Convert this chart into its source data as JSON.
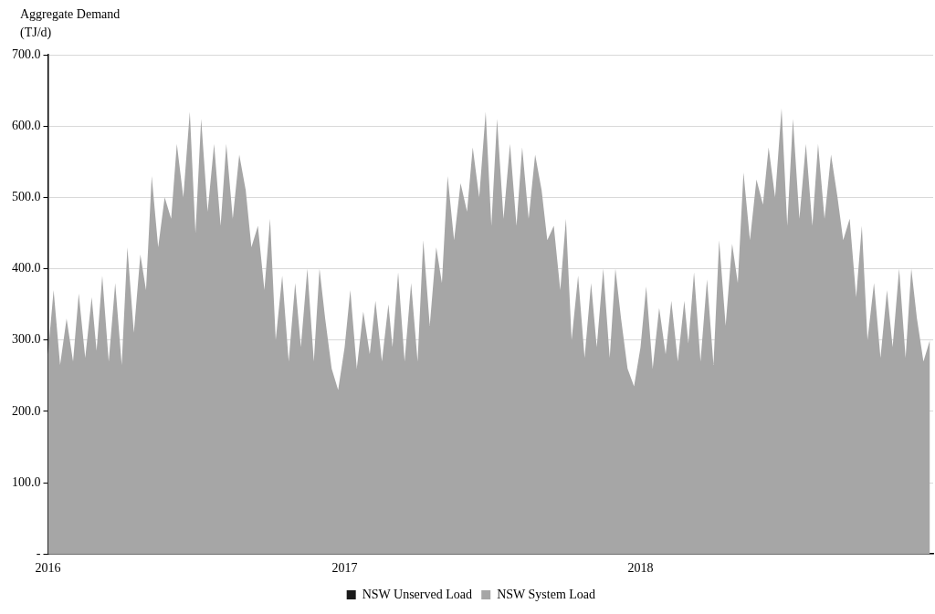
{
  "chart_data": {
    "type": "area",
    "ylabel": "Aggregate Demand (TJ/d)",
    "ylim": [
      0,
      700
    ],
    "yticks": [
      {
        "value": 0,
        "label": "-"
      },
      {
        "value": 100,
        "label": "100.0"
      },
      {
        "value": 200,
        "label": "200.0"
      },
      {
        "value": 300,
        "label": "300.0"
      },
      {
        "value": 400,
        "label": "400.0"
      },
      {
        "value": 500,
        "label": "500.0"
      },
      {
        "value": 600,
        "label": "600.0"
      },
      {
        "value": 700,
        "label": "700.0"
      }
    ],
    "xlim": [
      "2016-01-01",
      "2018-12-28"
    ],
    "xticks": [
      {
        "value": "2016-01-01",
        "label": "2016"
      },
      {
        "value": "2017-01-01",
        "label": "2017"
      },
      {
        "value": "2018-01-01",
        "label": "2018"
      }
    ],
    "grid": "y",
    "legend": "bottom",
    "series": [
      {
        "name": "NSW Unserved Load",
        "color": "#1a1a1a"
      },
      {
        "name": "NSW System Load",
        "color": "#a6a6a6",
        "x": [
          "2016-01-01",
          "2016-01-08",
          "2016-01-16",
          "2016-01-24",
          "2016-02-01",
          "2016-02-08",
          "2016-02-16",
          "2016-02-24",
          "2016-03-01",
          "2016-03-08",
          "2016-03-16",
          "2016-03-24",
          "2016-04-01",
          "2016-04-08",
          "2016-04-16",
          "2016-04-24",
          "2016-05-01",
          "2016-05-08",
          "2016-05-16",
          "2016-05-24",
          "2016-06-01",
          "2016-06-08",
          "2016-06-16",
          "2016-06-24",
          "2016-07-01",
          "2016-07-08",
          "2016-07-16",
          "2016-07-24",
          "2016-08-01",
          "2016-08-08",
          "2016-08-16",
          "2016-08-24",
          "2016-09-01",
          "2016-09-08",
          "2016-09-16",
          "2016-09-24",
          "2016-10-01",
          "2016-10-08",
          "2016-10-16",
          "2016-10-24",
          "2016-11-01",
          "2016-11-08",
          "2016-11-16",
          "2016-11-24",
          "2016-12-01",
          "2016-12-08",
          "2016-12-16",
          "2016-12-24",
          "2017-01-01",
          "2017-01-08",
          "2017-01-16",
          "2017-01-24",
          "2017-02-01",
          "2017-02-08",
          "2017-02-16",
          "2017-02-24",
          "2017-03-01",
          "2017-03-08",
          "2017-03-16",
          "2017-03-24",
          "2017-04-01",
          "2017-04-08",
          "2017-04-16",
          "2017-04-24",
          "2017-05-01",
          "2017-05-08",
          "2017-05-16",
          "2017-05-24",
          "2017-06-01",
          "2017-06-08",
          "2017-06-16",
          "2017-06-24",
          "2017-07-01",
          "2017-07-08",
          "2017-07-16",
          "2017-07-24",
          "2017-08-01",
          "2017-08-08",
          "2017-08-16",
          "2017-08-24",
          "2017-09-01",
          "2017-09-08",
          "2017-09-16",
          "2017-09-24",
          "2017-10-01",
          "2017-10-08",
          "2017-10-16",
          "2017-10-24",
          "2017-11-01",
          "2017-11-08",
          "2017-11-16",
          "2017-11-24",
          "2017-12-01",
          "2017-12-08",
          "2017-12-16",
          "2017-12-24",
          "2018-01-01",
          "2018-01-08",
          "2018-01-16",
          "2018-01-24",
          "2018-02-01",
          "2018-02-08",
          "2018-02-16",
          "2018-02-24",
          "2018-03-01",
          "2018-03-08",
          "2018-03-16",
          "2018-03-24",
          "2018-04-01",
          "2018-04-08",
          "2018-04-16",
          "2018-04-24",
          "2018-05-01",
          "2018-05-08",
          "2018-05-16",
          "2018-05-24",
          "2018-06-01",
          "2018-06-08",
          "2018-06-16",
          "2018-06-24",
          "2018-07-01",
          "2018-07-08",
          "2018-07-16",
          "2018-07-24",
          "2018-08-01",
          "2018-08-08",
          "2018-08-16",
          "2018-08-24",
          "2018-09-01",
          "2018-09-08",
          "2018-09-16",
          "2018-09-24",
          "2018-10-01",
          "2018-10-08",
          "2018-10-16",
          "2018-10-24",
          "2018-11-01",
          "2018-11-08",
          "2018-11-16",
          "2018-11-24",
          "2018-12-01",
          "2018-12-08",
          "2018-12-16",
          "2018-12-24"
        ],
        "values": [
          280,
          370,
          265,
          330,
          270,
          365,
          275,
          360,
          285,
          390,
          270,
          380,
          265,
          430,
          310,
          420,
          370,
          530,
          430,
          500,
          470,
          575,
          500,
          620,
          450,
          610,
          480,
          575,
          460,
          575,
          470,
          560,
          510,
          430,
          460,
          370,
          470,
          300,
          390,
          270,
          380,
          290,
          400,
          270,
          400,
          330,
          260,
          230,
          290,
          370,
          260,
          340,
          280,
          355,
          270,
          350,
          290,
          395,
          270,
          380,
          270,
          440,
          320,
          430,
          380,
          530,
          440,
          520,
          480,
          570,
          500,
          620,
          460,
          610,
          470,
          575,
          460,
          570,
          470,
          560,
          510,
          440,
          460,
          370,
          470,
          300,
          390,
          275,
          380,
          290,
          400,
          275,
          400,
          330,
          260,
          235,
          290,
          375,
          260,
          345,
          280,
          355,
          270,
          355,
          295,
          395,
          270,
          385,
          265,
          440,
          320,
          435,
          380,
          535,
          440,
          525,
          490,
          570,
          500,
          625,
          460,
          610,
          470,
          575,
          460,
          575,
          470,
          560,
          500,
          440,
          470,
          360,
          460,
          300,
          380,
          275,
          370,
          290,
          400,
          275,
          400,
          330,
          270,
          300
        ]
      }
    ]
  }
}
